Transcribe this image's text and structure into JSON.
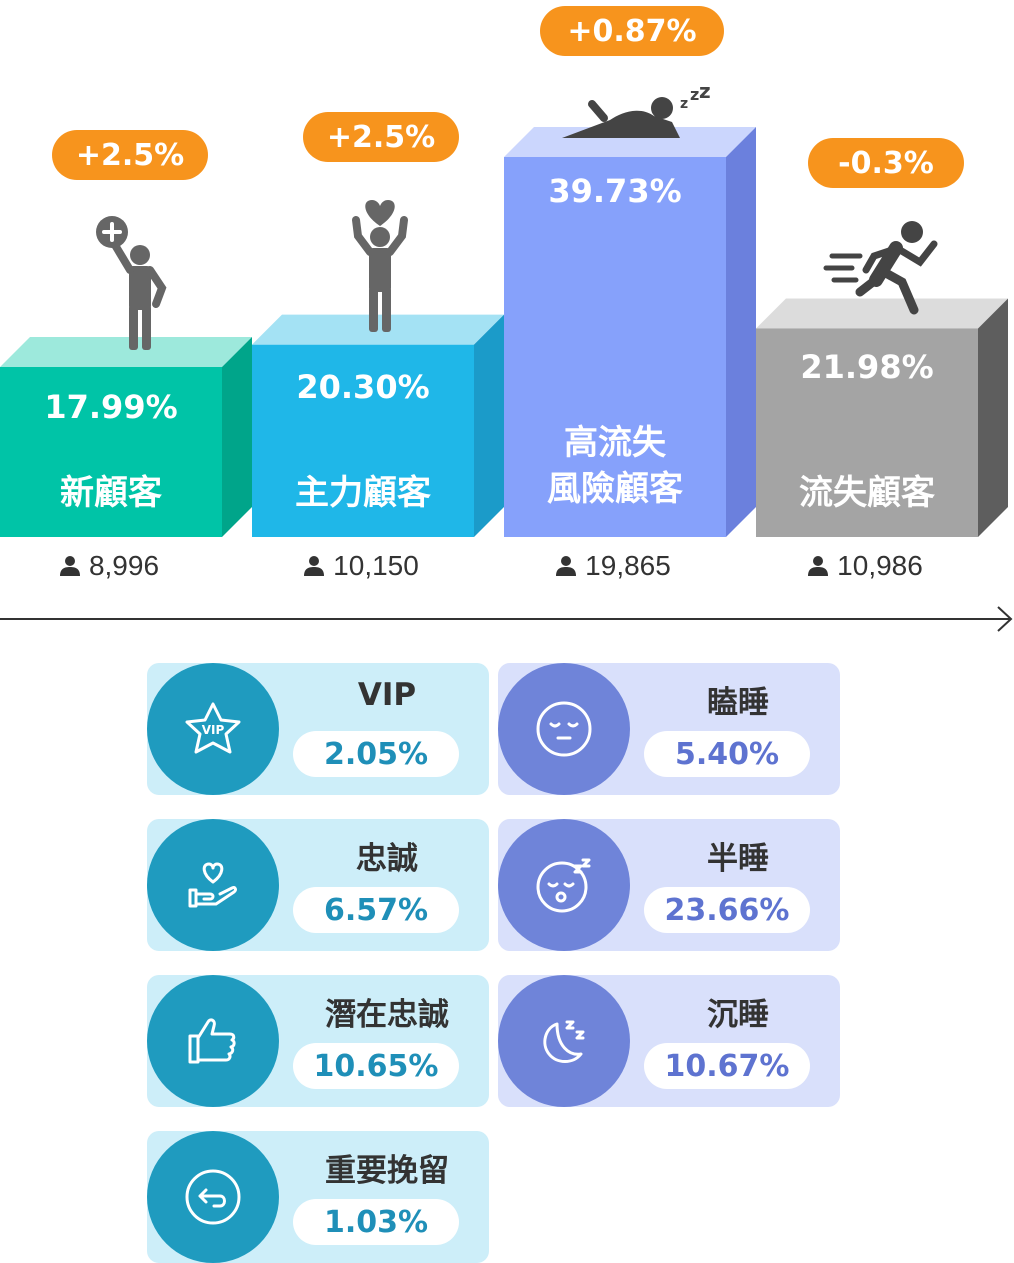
{
  "chart_data": {
    "type": "bar",
    "categories": [
      "新顧客",
      "主力顧客",
      "高流失\n風險顧客",
      "流失顧客"
    ],
    "values": [
      17.99,
      20.3,
      39.73,
      21.98
    ],
    "value_labels": [
      "17.99%",
      "20.30%",
      "39.73%",
      "21.98%"
    ],
    "changes": [
      "+2.5%",
      "+2.5%",
      "+0.87%",
      "-0.3%"
    ],
    "counts": [
      "8,996",
      "10,150",
      "19,865",
      "10,986"
    ],
    "colors": {
      "front": [
        "#00c4a7",
        "#1fb7e8",
        "#86a1fb",
        "#a4a4a4"
      ],
      "top": [
        "#9de9dc",
        "#a4e2f4",
        "#cbd6fd",
        "#dcdcdc"
      ],
      "side": [
        "#00a58a",
        "#1b9bc9",
        "#6b80dd",
        "#5e5e5e"
      ],
      "badge": "#f7941d"
    },
    "icons": [
      "person-add-icon",
      "person-heart-icon",
      "person-sleeping-icon",
      "person-running-icon"
    ]
  },
  "segments": {
    "loyal": [
      {
        "name": "VIP",
        "value": "2.05%",
        "icon": "vip-star-icon"
      },
      {
        "name": "忠誠",
        "value": "6.57%",
        "icon": "heart-hand-icon"
      },
      {
        "name": "潛在忠誠",
        "value": "10.65%",
        "icon": "thumbs-up-icon"
      },
      {
        "name": "重要挽留",
        "value": "1.03%",
        "icon": "return-arrow-icon"
      }
    ],
    "sleep": [
      {
        "name": "瞌睡",
        "value": "5.40%",
        "icon": "sleepy-face-icon"
      },
      {
        "name": "半睡",
        "value": "23.66%",
        "icon": "snoring-face-icon"
      },
      {
        "name": "沉睡",
        "value": "10.67%",
        "icon": "moon-zzz-icon"
      }
    ]
  }
}
